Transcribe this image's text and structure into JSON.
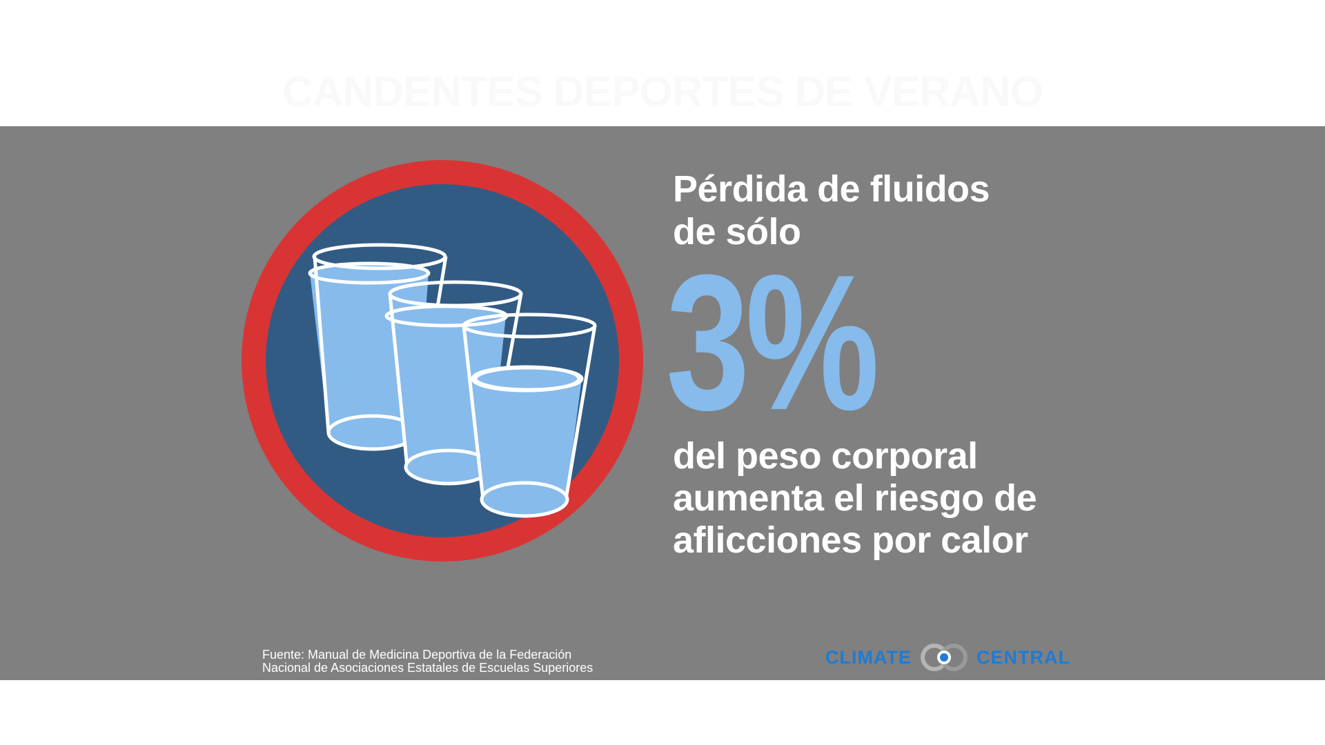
{
  "header": {
    "title": "CANDENTES DEPORTES DE VERANO"
  },
  "badge": {
    "icon": "water-glasses-icon",
    "ring_color": "#d93434",
    "fill_color": "#325b84",
    "water_color": "#86bbec"
  },
  "infographic": {
    "headline_line1": "Pérdida de fluidos",
    "headline_line2": "de sólo",
    "stat_value": "3%",
    "body_line1": "del peso corporal",
    "body_line2": "aumenta el riesgo de",
    "body_line3": "aflicciones por calor",
    "stat_color": "#86bbec",
    "panel_color": "#808080"
  },
  "source": {
    "line1": "Fuente: Manual de Medicina Deportiva de la Federación",
    "line2": "Nacional de Asociaciones Estatales de Escuelas Superiores"
  },
  "logo": {
    "left_word": "CLIMATE",
    "right_word": "CENTRAL",
    "icon": "climate-central-rings-icon",
    "color": "#1e7bd6"
  }
}
